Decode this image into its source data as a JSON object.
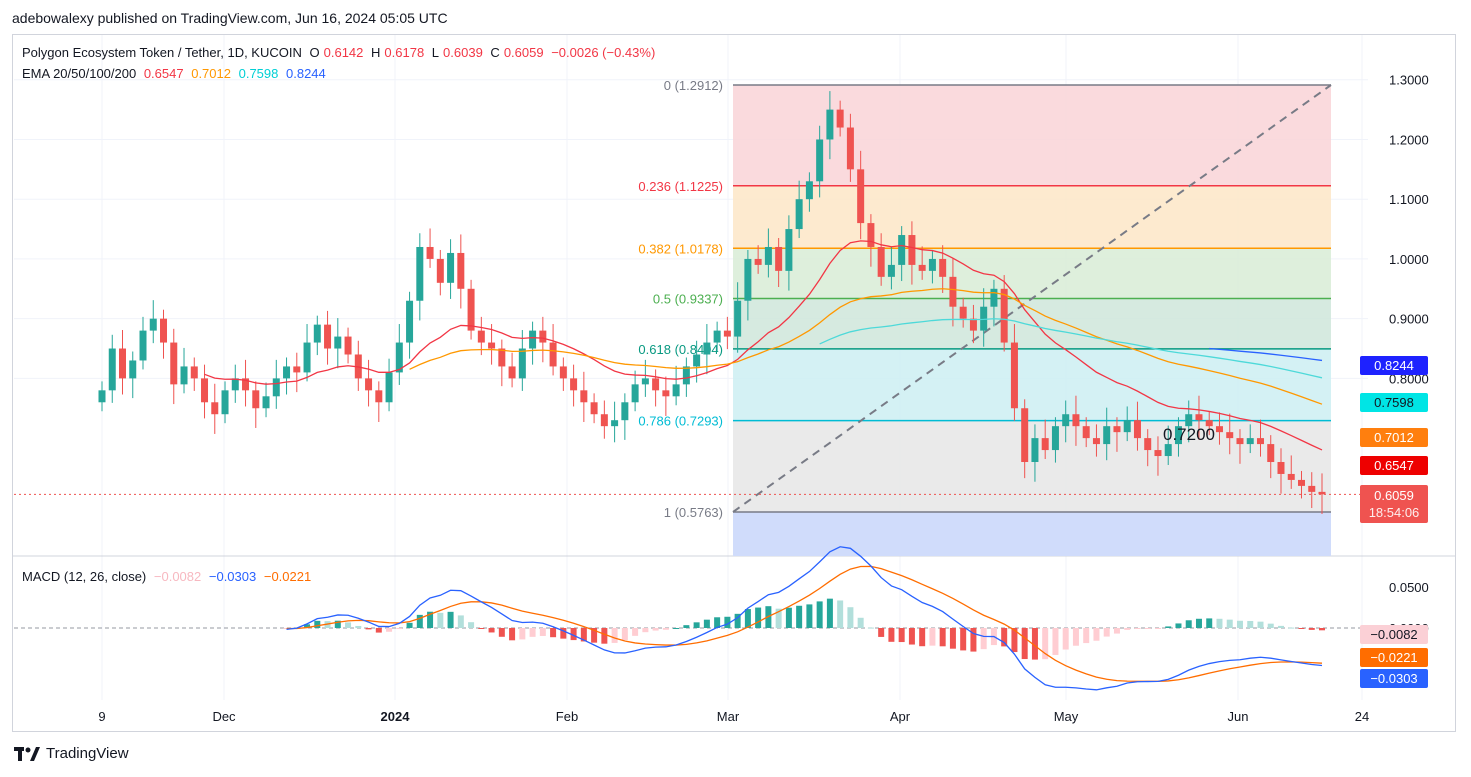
{
  "publisher_line": "adebowalexy published on TradingView.com, Jun 16, 2024 05:05 UTC",
  "legend": {
    "symbol": "Polygon Ecosystem Token / Tether, 1D, KUCOIN",
    "o_label": "O",
    "o": "0.6142",
    "h_label": "H",
    "h": "0.6178",
    "l_label": "L",
    "l": "0.6039",
    "c_label": "C",
    "c": "0.6059",
    "change": "−0.0026 (−0.43%)",
    "ema_label": "EMA 20/50/100/200",
    "ema20": "0.6547",
    "ema50": "0.7012",
    "ema100": "0.7598",
    "ema200": "0.8244"
  },
  "macd_legend": {
    "label": "MACD (12, 26, close)",
    "hist": "−0.0082",
    "macd": "−0.0303",
    "signal": "−0.0221"
  },
  "price_tags": {
    "ema200": "0.8244",
    "ema100": "0.7598",
    "ema50": "0.7012",
    "ema20": "0.6547",
    "last": "0.6059",
    "countdown": "18:54:06"
  },
  "macd_tags": {
    "hist": "−0.0082",
    "signal": "−0.0221",
    "macd": "−0.0303"
  },
  "annotation": "0.7200",
  "footer": {
    "brand": "TradingView"
  },
  "colors": {
    "up": "#26a69a",
    "down": "#ef5350",
    "ema20": "#f23645",
    "ema50": "#ff9800",
    "ema100": "#00e5e5",
    "ema200": "#2962ff",
    "macd": "#2962ff",
    "signal": "#ff6d00"
  },
  "chart_data": {
    "type": "candlestick",
    "title": "Polygon Ecosystem Token / Tether, 1D, KUCOIN",
    "price_axis": {
      "ticks": [
        "1.3000",
        "1.2000",
        "1.1000",
        "1.0000",
        "0.9000",
        "0.8000"
      ],
      "ylim": [
        0.55,
        1.33
      ]
    },
    "macd_axis": {
      "ticks": [
        "0.0500",
        "0.0000"
      ]
    },
    "x_ticks": [
      "9",
      "Dec",
      "2024",
      "Feb",
      "Mar",
      "Apr",
      "May",
      "Jun",
      "24"
    ],
    "fibonacci": [
      {
        "label": "0 (1.2912)",
        "level": 1.2912
      },
      {
        "label": "0.236 (1.1225)",
        "level": 1.1225
      },
      {
        "label": "0.382 (1.0178)",
        "level": 1.0178
      },
      {
        "label": "0.5 (0.9337)",
        "level": 0.9337
      },
      {
        "label": "0.618 (0.8494)",
        "level": 0.8494
      },
      {
        "label": "0.786 (0.7293)",
        "level": 0.7293
      },
      {
        "label": "1 (0.5763)",
        "level": 0.5763
      }
    ],
    "closes": [
      0.78,
      0.85,
      0.8,
      0.83,
      0.88,
      0.9,
      0.86,
      0.79,
      0.82,
      0.8,
      0.76,
      0.74,
      0.78,
      0.8,
      0.78,
      0.75,
      0.77,
      0.8,
      0.82,
      0.81,
      0.86,
      0.89,
      0.85,
      0.87,
      0.84,
      0.8,
      0.78,
      0.76,
      0.81,
      0.86,
      0.93,
      1.02,
      1.0,
      0.96,
      1.01,
      0.95,
      0.88,
      0.86,
      0.85,
      0.82,
      0.8,
      0.85,
      0.88,
      0.86,
      0.82,
      0.8,
      0.78,
      0.76,
      0.74,
      0.72,
      0.73,
      0.76,
      0.79,
      0.8,
      0.78,
      0.77,
      0.79,
      0.82,
      0.84,
      0.86,
      0.88,
      0.87,
      0.93,
      1.0,
      0.99,
      1.02,
      0.98,
      1.05,
      1.1,
      1.13,
      1.2,
      1.25,
      1.22,
      1.15,
      1.06,
      1.02,
      0.97,
      0.99,
      1.04,
      0.99,
      0.98,
      1.0,
      0.97,
      0.92,
      0.9,
      0.88,
      0.92,
      0.95,
      0.86,
      0.75,
      0.66,
      0.7,
      0.68,
      0.72,
      0.74,
      0.72,
      0.7,
      0.69,
      0.72,
      0.71,
      0.73,
      0.7,
      0.68,
      0.67,
      0.69,
      0.72,
      0.74,
      0.73,
      0.72,
      0.71,
      0.7,
      0.69,
      0.7,
      0.69,
      0.66,
      0.64,
      0.63,
      0.62,
      0.61,
      0.6059
    ],
    "ema": [
      {
        "name": "EMA 20",
        "last": 0.6547
      },
      {
        "name": "EMA 50",
        "last": 0.7012
      },
      {
        "name": "EMA 100",
        "last": 0.7598
      },
      {
        "name": "EMA 200",
        "last": 0.8244
      }
    ],
    "macd": {
      "macd_last": -0.0303,
      "signal_last": -0.0221,
      "hist_last": -0.0082
    }
  }
}
